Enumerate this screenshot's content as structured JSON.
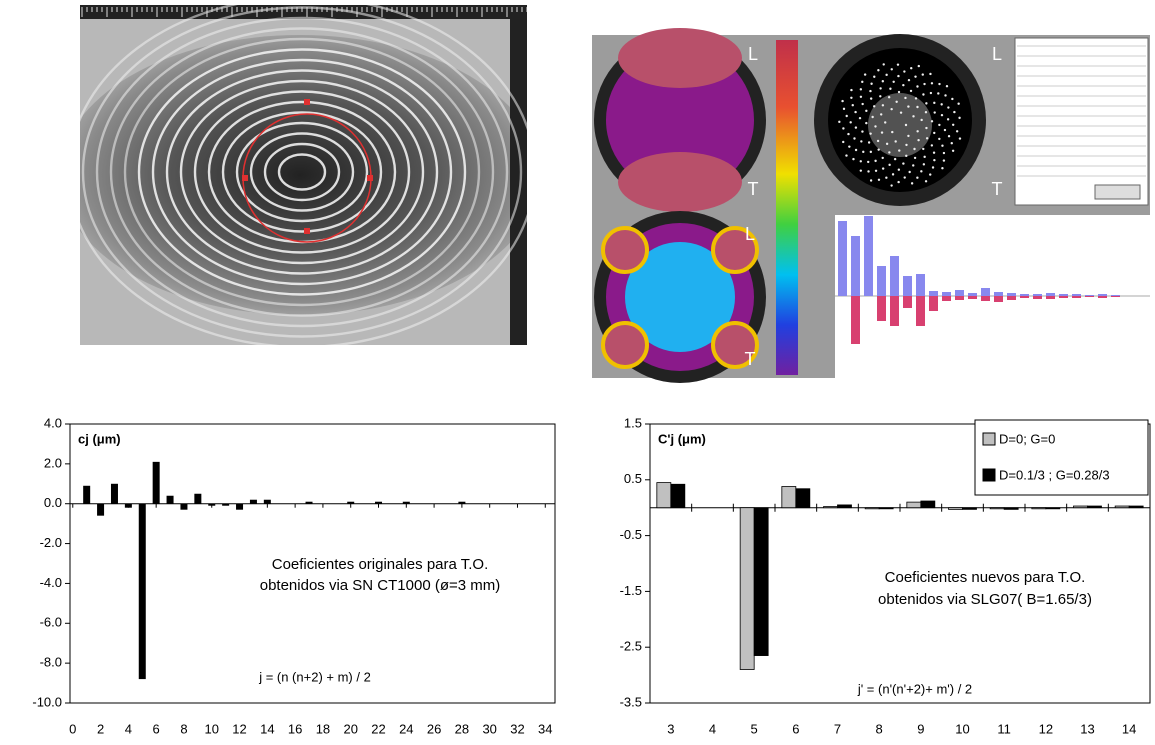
{
  "screenshot": {
    "labels": [
      "L",
      "T",
      "L",
      "T",
      "L",
      "T"
    ]
  },
  "chart_data": [
    {
      "type": "bar",
      "ylabel": "cj (μm)",
      "annotations": [
        "Coeficientes originales para T.O.",
        "obtenidos via SN CT1000 (ø=3 mm)",
        "j = (n (n+2) + m) / 2"
      ],
      "x": [
        1,
        2,
        3,
        4,
        5,
        6,
        7,
        8,
        9,
        10,
        11,
        12,
        13,
        14,
        17,
        20,
        22,
        24,
        28
      ],
      "values": [
        0.9,
        -0.6,
        1.0,
        -0.2,
        -8.8,
        2.1,
        0.4,
        -0.3,
        0.5,
        -0.1,
        -0.1,
        -0.3,
        0.2,
        0.2,
        0.1,
        0.1,
        0.1,
        0.1,
        0.1
      ],
      "color": "#000000",
      "xlim": [
        -0.2,
        34.7
      ],
      "xticks": [
        0,
        2,
        4,
        6,
        8,
        10,
        12,
        14,
        16,
        18,
        20,
        22,
        24,
        26,
        28,
        30,
        32,
        34
      ],
      "ylim": [
        -10,
        4
      ],
      "yticks": [
        {
          "value": -10,
          "label": "-10.0"
        },
        {
          "value": -8,
          "label": "-8.0"
        },
        {
          "value": -6,
          "label": "-6.0"
        },
        {
          "value": -4,
          "label": "-4.0"
        },
        {
          "value": -2,
          "label": "-2.0"
        },
        {
          "value": 0,
          "label": "0.0"
        },
        {
          "value": 2,
          "label": "2.0"
        },
        {
          "value": 4,
          "label": "4.0"
        }
      ]
    },
    {
      "type": "bar",
      "ylabel": "C'j (μm)",
      "annotations": [
        "Coeficientes nuevos para T.O.",
        "obtenidos via SLG07( B=1.65/3)",
        "j' = (n'(n'+2)+ m') / 2"
      ],
      "categories": [
        "3",
        "4",
        "5",
        "6",
        "7",
        "8",
        "9",
        "10",
        "11",
        "12",
        "13",
        "14"
      ],
      "series": [
        {
          "name": "D=0; G=0",
          "color": "#c0c0c0",
          "values": [
            0.45,
            0,
            -2.9,
            0.38,
            0.02,
            -0.02,
            0.1,
            -0.03,
            -0.02,
            -0.02,
            0.03,
            0.03
          ]
        },
        {
          "name": "D=0.1/3 ; G=0.28/3",
          "color": "#000000",
          "values": [
            0.42,
            0,
            -2.65,
            0.34,
            0.05,
            -0.02,
            0.12,
            -0.03,
            -0.03,
            -0.02,
            0.03,
            0.03
          ]
        }
      ],
      "legend": "upper right",
      "ylim": [
        -3.5,
        1.5
      ],
      "yticks": [
        -3.5,
        -2.5,
        -1.5,
        -0.5,
        0.5,
        1.5
      ]
    }
  ]
}
